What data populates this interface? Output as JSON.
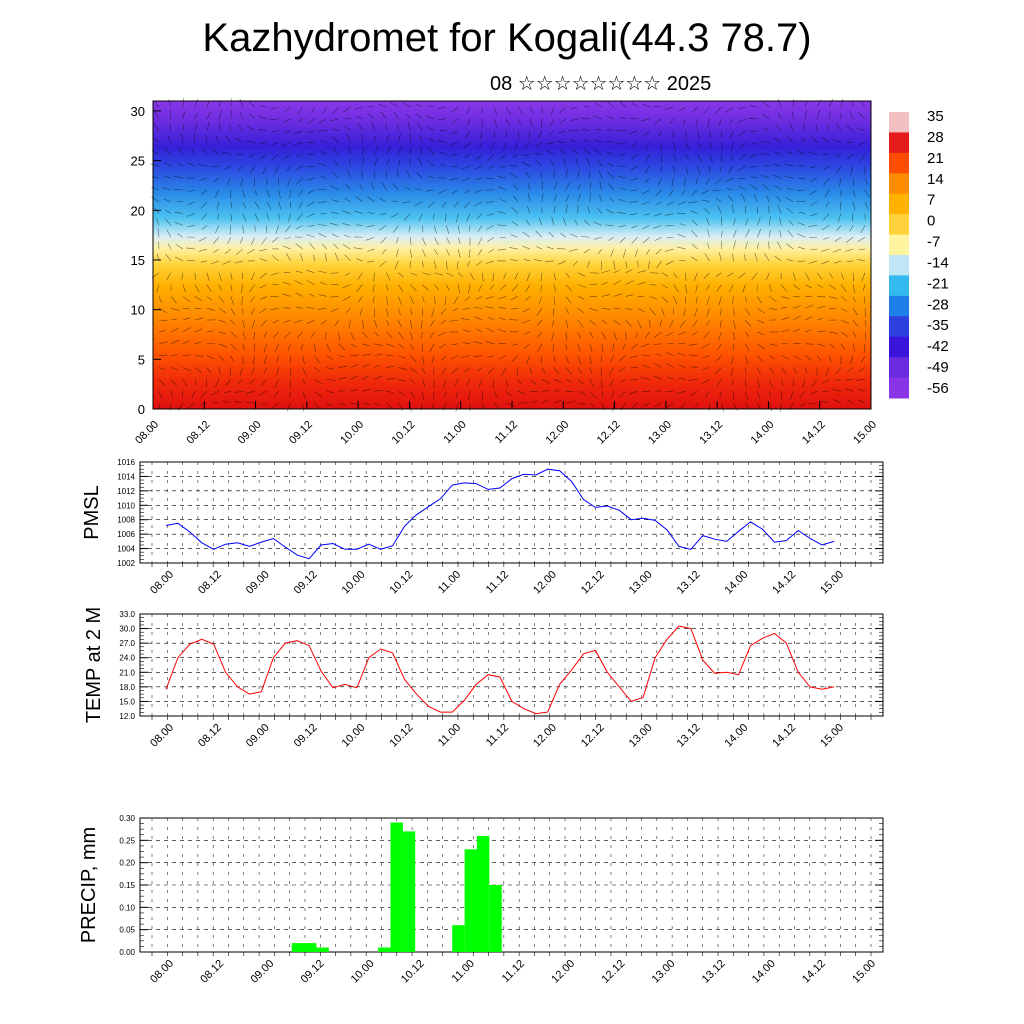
{
  "header": {
    "title": "Kazhydromet for Kogali(44.3 78.7)",
    "subtitle": "08 ☆☆☆☆☆☆☆☆ 2025"
  },
  "chart_data": [
    {
      "type": "heatmap",
      "name": "cross-section",
      "ylim": [
        0,
        31
      ],
      "yticks": [
        0,
        5,
        10,
        15,
        20,
        25,
        30
      ],
      "xticks": [
        "08.00",
        "08.12",
        "09.00",
        "09.12",
        "10.00",
        "10.12",
        "11.00",
        "11.12",
        "12.00",
        "12.12",
        "13.00",
        "13.12",
        "14.00",
        "14.12",
        "15.00"
      ],
      "colorbar_labels": [
        "35",
        "28",
        "21",
        "14",
        "7",
        "0",
        "-7",
        "-14",
        "-21",
        "-28",
        "-35",
        "-42",
        "-49",
        "-56"
      ],
      "colors": [
        "#f2c0c0",
        "#e51a1a",
        "#ff4d00",
        "#ff8c00",
        "#ffb300",
        "#ffd23c",
        "#fff5a0",
        "#bfe6f5",
        "#33bbf0",
        "#1f7fe8",
        "#2e3fe0",
        "#3a14d8",
        "#6a2ae0",
        "#8a34e8"
      ]
    },
    {
      "type": "line",
      "name": "pmsl",
      "ylabel": "PMSL",
      "ylim": [
        1002,
        1016
      ],
      "yticks": [
        "1002",
        "1004",
        "1006",
        "1008",
        "1010",
        "1012",
        "1014",
        "1016"
      ],
      "xticks": [
        "08.00",
        "08.12",
        "09.00",
        "09.12",
        "10.00",
        "10.12",
        "11.00",
        "11.12",
        "12.00",
        "12.12",
        "13.00",
        "13.12",
        "14.00",
        "14.12",
        "15.00"
      ],
      "color": "#0000ff",
      "values": [
        1007.2,
        1007.5,
        1006.3,
        1004.8,
        1003.9,
        1004.6,
        1004.8,
        1004.3,
        1004.9,
        1005.4,
        1004.2,
        1003.1,
        1002.6,
        1004.5,
        1004.7,
        1003.9,
        1003.9,
        1004.6,
        1003.9,
        1004.4,
        1007.1,
        1008.7,
        1009.8,
        1010.9,
        1012.8,
        1013.1,
        1013.0,
        1012.2,
        1012.4,
        1013.7,
        1014.3,
        1014.2,
        1015.0,
        1014.8,
        1013.3,
        1010.8,
        1009.7,
        1009.9,
        1009.3,
        1008.0,
        1008.2,
        1007.9,
        1006.6,
        1004.3,
        1003.9,
        1005.8,
        1005.3,
        1005.0,
        1006.4,
        1007.7,
        1006.7,
        1004.9,
        1005.1,
        1006.5,
        1005.4,
        1004.5,
        1005.0
      ]
    },
    {
      "type": "line",
      "name": "temp",
      "ylabel": "TEMP at 2 M",
      "ylim": [
        12,
        33
      ],
      "yticks": [
        "12.0",
        "15.0",
        "18.0",
        "21.0",
        "24.0",
        "27.0",
        "30.0",
        "33.0"
      ],
      "xticks": [
        "08.00",
        "08.12",
        "09.00",
        "09.12",
        "10.00",
        "10.12",
        "11.00",
        "11.12",
        "12.00",
        "12.12",
        "13.00",
        "13.12",
        "14.00",
        "14.12",
        "15.00"
      ],
      "color": "#ff0000",
      "values": [
        17.5,
        24.0,
        26.8,
        27.8,
        26.8,
        21.0,
        18.0,
        16.5,
        17.0,
        24.0,
        27.0,
        27.5,
        26.5,
        21.2,
        17.8,
        18.5,
        17.8,
        24.0,
        25.8,
        25.0,
        19.5,
        16.5,
        14.0,
        12.8,
        12.8,
        15.2,
        18.5,
        20.5,
        20.0,
        15.0,
        13.5,
        12.5,
        12.8,
        18.5,
        21.5,
        24.8,
        25.5,
        21.0,
        18.0,
        15.0,
        15.8,
        24.0,
        27.8,
        30.5,
        30.0,
        23.5,
        20.8,
        21.0,
        20.5,
        26.5,
        28.0,
        29.0,
        27.0,
        21.0,
        18.0,
        17.5,
        18.0
      ]
    },
    {
      "type": "bar",
      "name": "precip",
      "ylabel": "PRECIP, mm",
      "ylim": [
        0,
        0.3
      ],
      "yticks": [
        "0.00",
        "0.05",
        "0.10",
        "0.15",
        "0.20",
        "0.25",
        "0.30"
      ],
      "xticks": [
        "08.00",
        "08.12",
        "09.00",
        "09.12",
        "10.00",
        "10.12",
        "11.00",
        "11.12",
        "12.00",
        "12.12",
        "13.00",
        "13.12",
        "14.00",
        "14.12",
        "15.00"
      ],
      "color": "#00ff00",
      "values": [
        0,
        0,
        0,
        0,
        0,
        0,
        0,
        0,
        0,
        0,
        0,
        0.02,
        0.02,
        0.01,
        0,
        0,
        0,
        0,
        0.01,
        0.29,
        0.27,
        0,
        0,
        0,
        0.06,
        0.23,
        0.26,
        0.15,
        0,
        0,
        0,
        0,
        0,
        0,
        0,
        0,
        0,
        0,
        0,
        0,
        0,
        0,
        0,
        0,
        0,
        0,
        0,
        0,
        0,
        0,
        0,
        0,
        0,
        0,
        0,
        0,
        0,
        0
      ]
    }
  ]
}
